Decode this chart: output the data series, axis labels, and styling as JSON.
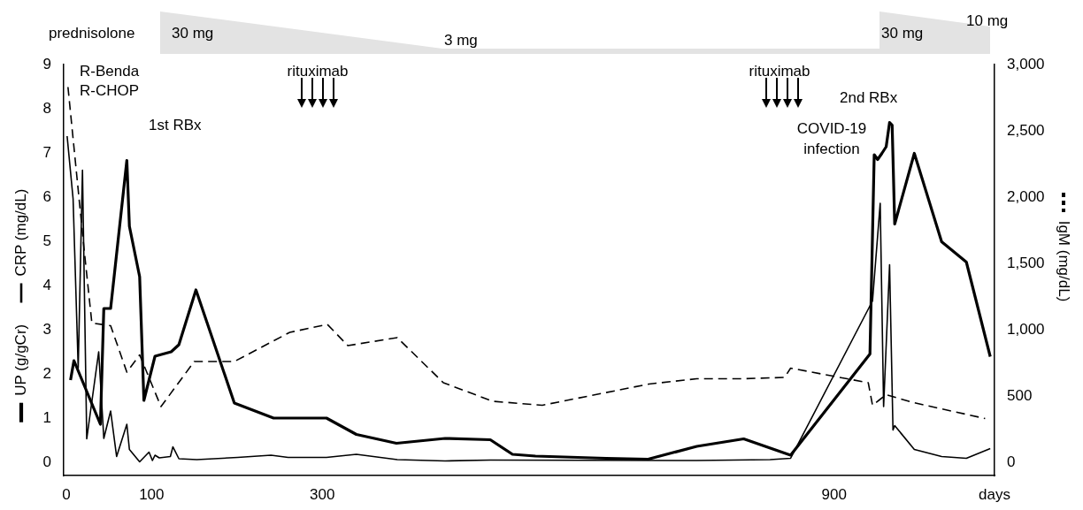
{
  "chart_data": {
    "type": "line",
    "xlabel": "days",
    "y2label": "IgM (mg/dL)",
    "legend": "left",
    "xlim": [
      -3,
      1088
    ],
    "xticks": [
      0,
      100,
      300,
      900
    ],
    "ylim": [
      -0.3,
      9
    ],
    "yticks": [
      0,
      1,
      2,
      3,
      4,
      5,
      6,
      7,
      8,
      9
    ],
    "y2lim": [
      -100,
      3000
    ],
    "y2ticks": [
      0,
      500,
      {
        "value": 1000,
        "label": "1,000"
      },
      {
        "value": 1500,
        "label": "1,500"
      },
      {
        "value": 2000,
        "label": "2,000"
      },
      {
        "value": 2500,
        "label": "2,500"
      },
      {
        "value": 3000,
        "label": "3,000"
      }
    ],
    "grid": false,
    "marker": "none",
    "annotations": [
      "prednisolone",
      "30 mg",
      "3 mg",
      "30 mg",
      "10 mg",
      "R-Benda",
      "R-CHOP",
      "1st RBx",
      "rituximab",
      "rituximab",
      "2nd RBx",
      "COVID-19\ninfection"
    ],
    "series": [
      {
        "name": "UP (g/gCr)",
        "color": "#000000",
        "line_style": "solid",
        "x": [
          5,
          9,
          40,
          44,
          52,
          71,
          74,
          86,
          91,
          104,
          123,
          132,
          152,
          197,
          243,
          305,
          340,
          387,
          444,
          497,
          523,
          550,
          633,
          682,
          739,
          794,
          849,
          942,
          947,
          951,
          956,
          961,
          965,
          968,
          971,
          994,
          1026,
          1055,
          1083
        ],
        "values": [
          1.86,
          2.3,
          0.86,
          3.48,
          3.48,
          6.83,
          5.34,
          4.2,
          1.4,
          2.4,
          2.5,
          2.66,
          3.9,
          1.34,
          1.0,
          1.0,
          0.63,
          0.43,
          0.54,
          0.51,
          0.18,
          0.14,
          0.09,
          0.07,
          0.36,
          0.53,
          0.16,
          2.45,
          6.96,
          6.85,
          6.99,
          7.14,
          7.69,
          7.63,
          5.39,
          6.99,
          4.99,
          4.53,
          2.39
        ]
      },
      {
        "name": "CRP (mg/dL)",
        "color": "#000000",
        "line_style": "solid",
        "x": [
          1,
          8,
          14,
          19,
          24,
          38,
          44,
          52,
          59,
          71,
          74,
          86,
          97,
          101,
          104,
          109,
          122,
          125,
          132,
          153,
          201,
          240,
          260,
          305,
          340,
          388,
          444,
          497,
          739,
          825,
          849,
          945,
          954,
          958,
          965,
          969,
          971,
          994,
          1026,
          1055,
          1083
        ],
        "values": [
          7.38,
          5.96,
          2.13,
          6.61,
          0.53,
          2.5,
          0.54,
          1.16,
          0.13,
          0.86,
          0.29,
          0.01,
          0.23,
          0.04,
          0.16,
          0.1,
          0.13,
          0.35,
          0.08,
          0.06,
          0.11,
          0.16,
          0.11,
          0.11,
          0.18,
          0.06,
          0.03,
          0.05,
          0.04,
          0.06,
          0.09,
          3.65,
          5.86,
          1.26,
          4.47,
          0.73,
          0.83,
          0.29,
          0.13,
          0.09,
          0.31
        ]
      },
      {
        "color": "#000000",
        "line_style": "dashed",
        "axis": "y2",
        "x": [
          2,
          21,
          30,
          52,
          71,
          86,
          111,
          150,
          197,
          262,
          306,
          330,
          388,
          442,
          500,
          558,
          683,
          739,
          794,
          842,
          849,
          940,
          945,
          953,
          961,
          993,
          1077
        ],
        "values": [
          2830,
          1600,
          1050,
          1030,
          680,
          810,
          420,
          760,
          760,
          980,
          1040,
          880,
          940,
          600,
          460,
          430,
          590,
          630,
          630,
          640,
          710,
          600,
          430,
          470,
          510,
          450,
          330
        ]
      }
    ]
  }
}
